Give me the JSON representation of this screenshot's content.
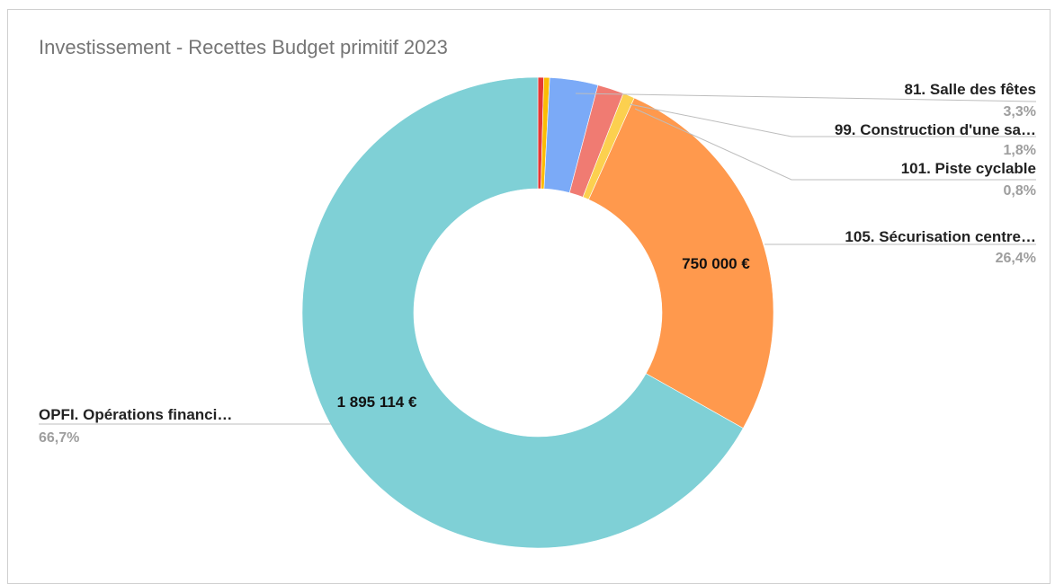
{
  "chart_data": {
    "type": "donut",
    "title": "Investissement - Recettes Budget primitif 2023",
    "slices": [
      {
        "name": "",
        "percent": 0.4,
        "color": "#e53935"
      },
      {
        "name": "",
        "percent": 0.4,
        "color": "#fbbc04"
      },
      {
        "name": "81. Salle des fêtes",
        "percent": 3.3,
        "pct_label": "3,3%",
        "color": "#7baaf7"
      },
      {
        "name": "99. Construction d'une sa…",
        "percent": 1.8,
        "pct_label": "1,8%",
        "color": "#f07b72"
      },
      {
        "name": "101. Piste cyclable",
        "percent": 0.8,
        "pct_label": "0,8%",
        "color": "#fcd04f"
      },
      {
        "name": "105. Sécurisation centre…",
        "percent": 26.4,
        "pct_label": "26,4%",
        "value_label": "750 000 €",
        "color": "#ff994d"
      },
      {
        "name": "OPFI. Opérations financi…",
        "percent": 66.7,
        "pct_label": "66,7%",
        "value_label": "1 895 114 €",
        "color": "#7fd0d6"
      }
    ]
  }
}
